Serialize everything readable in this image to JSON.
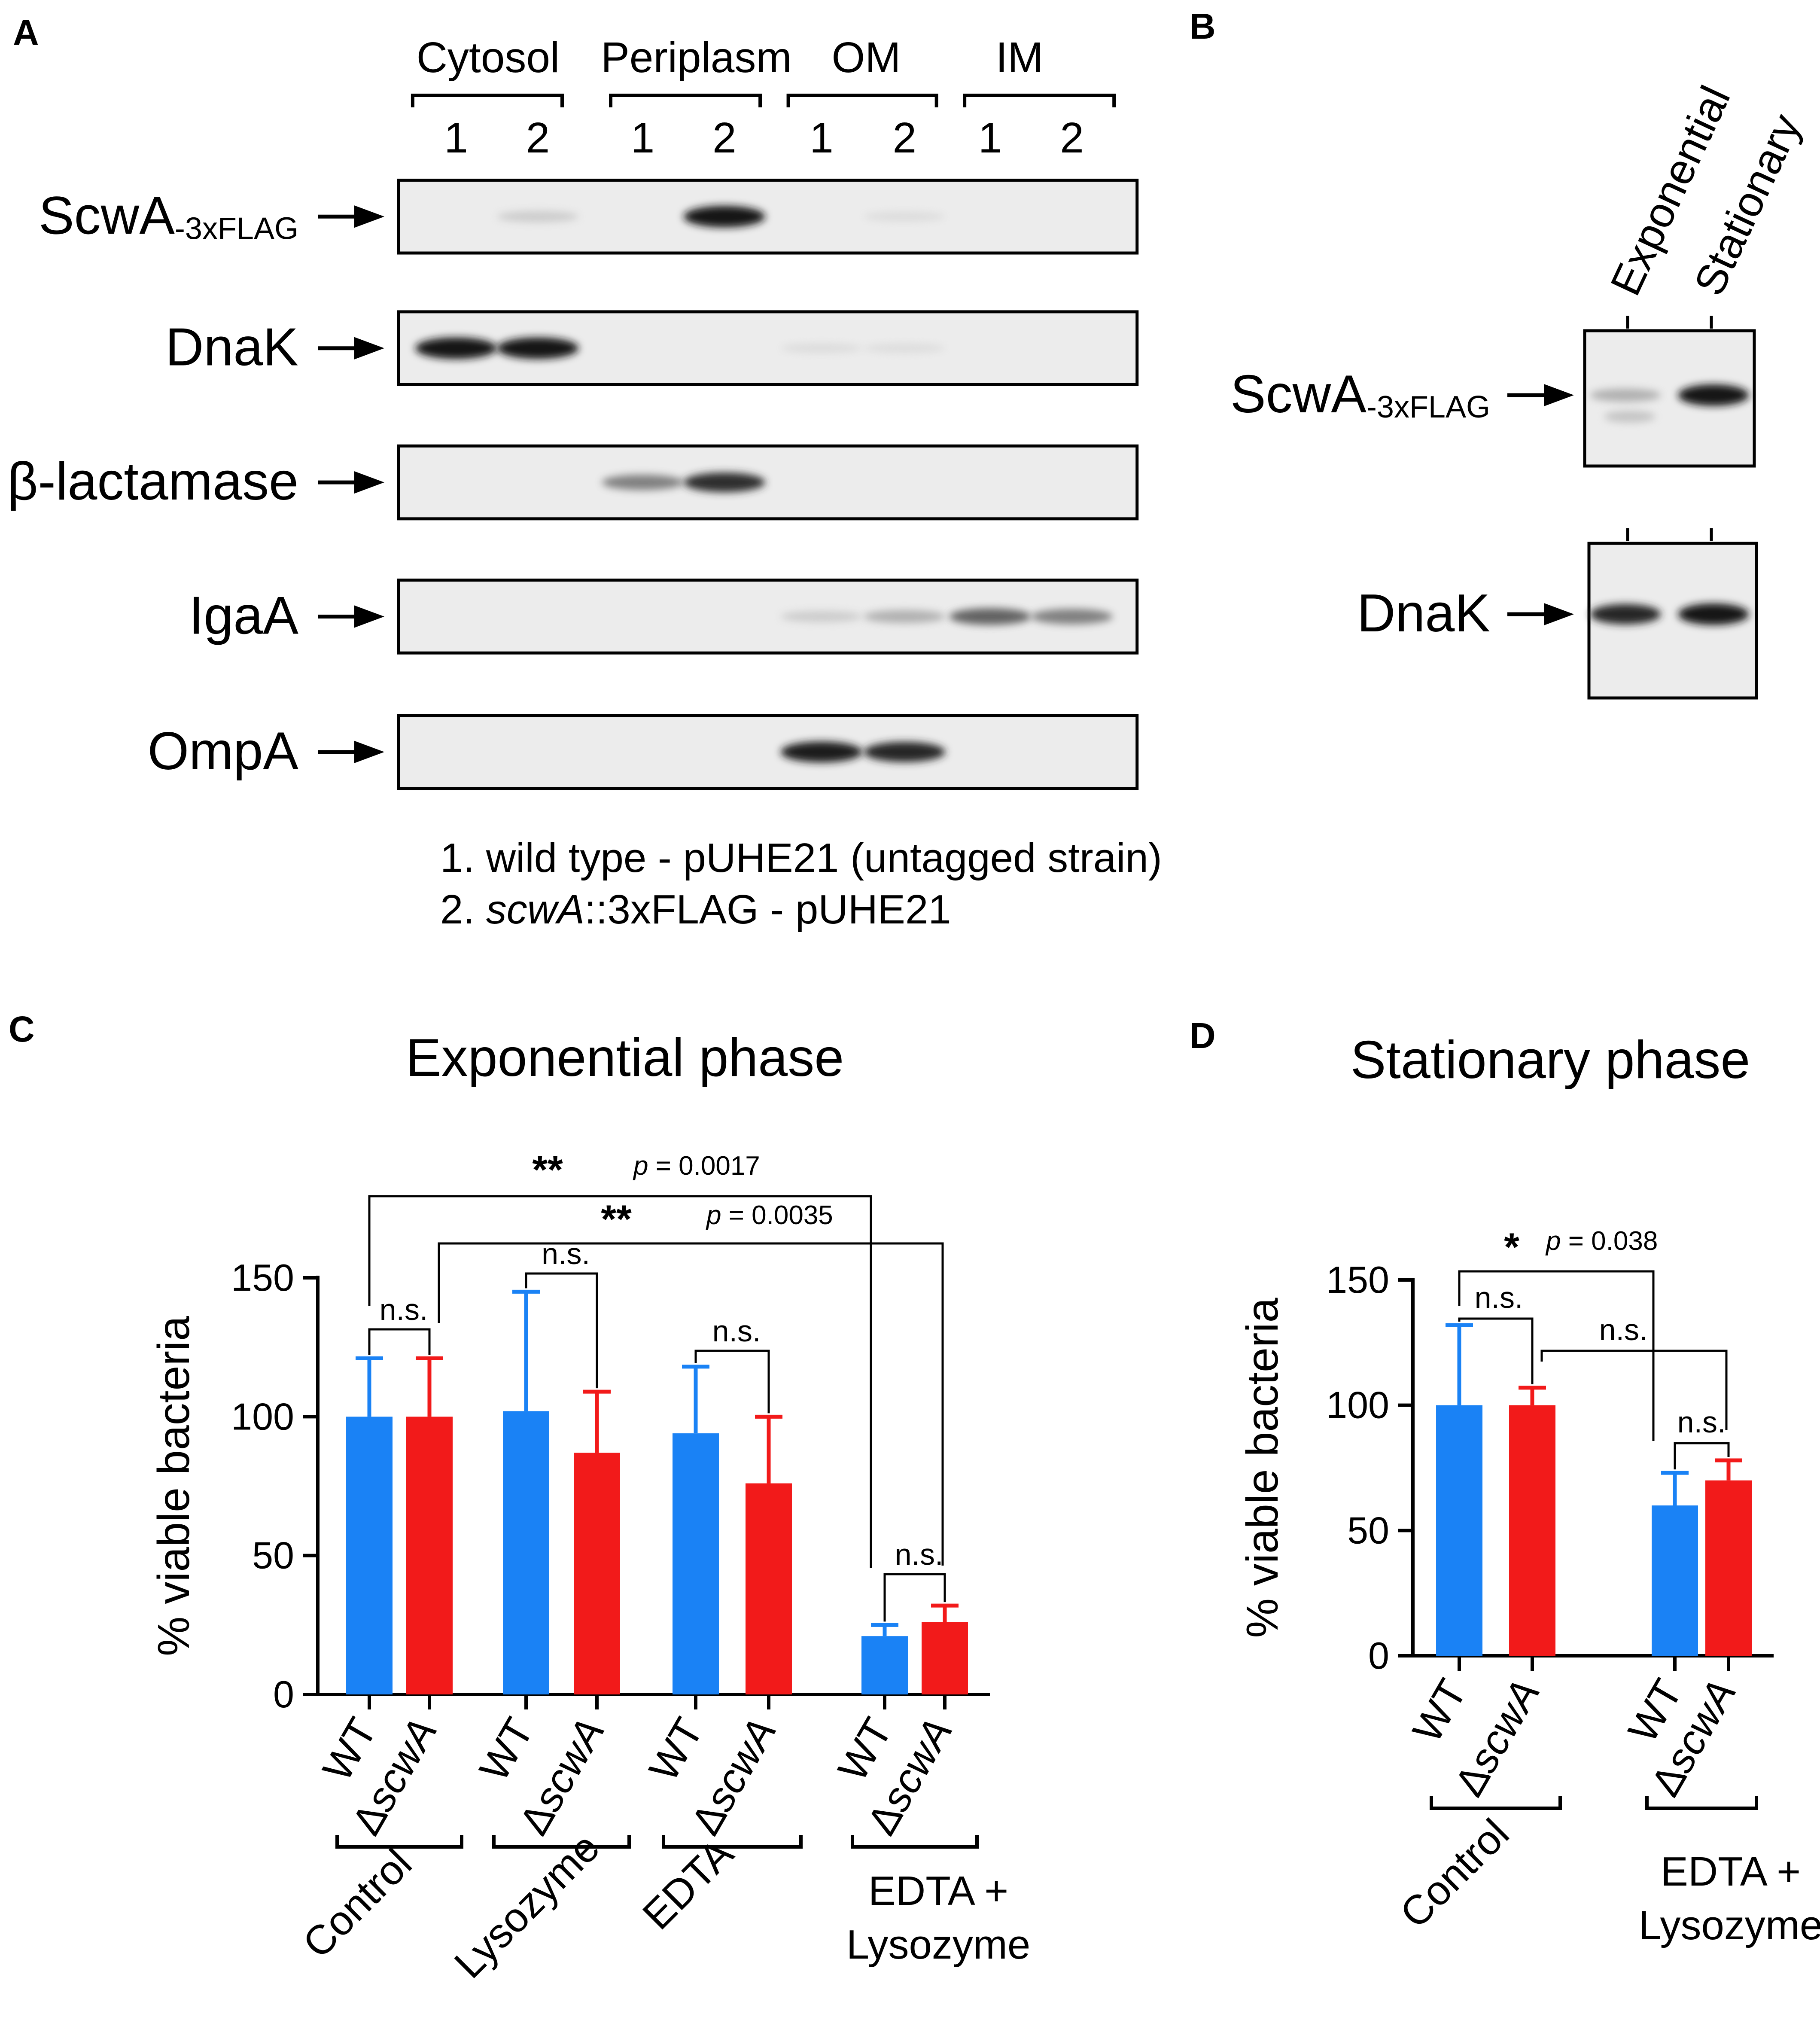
{
  "panels": {
    "A": {
      "label": "A",
      "fractions": [
        {
          "name": "Cytosol",
          "lanes": [
            "1",
            "2"
          ]
        },
        {
          "name": "Periplasm",
          "lanes": [
            "1",
            "2"
          ]
        },
        {
          "name": "OM",
          "lanes": [
            "1",
            "2"
          ]
        },
        {
          "name": "IM",
          "lanes": [
            "1",
            "2"
          ]
        }
      ],
      "blots": [
        {
          "label": "ScwA",
          "sub": "-3xFLAG",
          "bands": [
            0,
            0.15,
            0,
            1.0,
            0,
            0.03,
            0,
            0
          ]
        },
        {
          "label": "DnaK",
          "sub": "",
          "bands": [
            1.0,
            1.0,
            0,
            0,
            0.03,
            0.02,
            0,
            0
          ]
        },
        {
          "label": "β-lactamase",
          "sub": "",
          "bands": [
            0,
            0,
            0.5,
            0.85,
            0,
            0,
            0,
            0
          ]
        },
        {
          "label": "IgaA",
          "sub": "",
          "bands": [
            0,
            0,
            0,
            0,
            0.15,
            0.3,
            0.6,
            0.5
          ]
        },
        {
          "label": "OmpA",
          "sub": "",
          "bands": [
            0,
            0,
            0,
            0,
            0.95,
            0.9,
            0,
            0
          ]
        }
      ],
      "legend": {
        "line1": "1. wild type - pUHE21 (untagged strain)",
        "line2_prefix": "2. ",
        "line2_italic": "scwA",
        "line2_rest": "::3xFLAG - pUHE21"
      }
    },
    "B": {
      "label": "B",
      "lanes": [
        "Exponential",
        "Stationary"
      ],
      "blots": [
        {
          "label": "ScwA",
          "sub": "-3xFLAG",
          "bands": [
            0.3,
            1.0
          ]
        },
        {
          "label": "DnaK",
          "sub": "",
          "bands": [
            0.9,
            1.0
          ]
        }
      ]
    },
    "C": {
      "label": "C"
    },
    "D": {
      "label": "D"
    }
  },
  "chart_data": [
    {
      "type": "bar",
      "title": "Exponential phase",
      "ylabel": "% viable bacteria",
      "ylim": [
        0,
        150
      ],
      "yticks": [
        0,
        50,
        100,
        150
      ],
      "groups": [
        "Control",
        "Lysozyme",
        "EDTA",
        "EDTA + Lysozyme"
      ],
      "group_lines": [
        [
          "Control"
        ],
        [
          "Lysozyme"
        ],
        [
          "EDTA"
        ],
        [
          "EDTA +",
          "Lysozyme"
        ]
      ],
      "series": [
        {
          "name": "WT",
          "color": "#1a82f5",
          "values": [
            100,
            102,
            94,
            21
          ],
          "errors": [
            21,
            43,
            24,
            4
          ]
        },
        {
          "name": "ΔscwA",
          "color": "#f21a1a",
          "values": [
            100,
            87,
            76,
            26
          ],
          "errors": [
            21,
            22,
            24,
            6
          ]
        }
      ],
      "category_labels": {
        "wt": "WT",
        "delta": "Δ",
        "gene": "scwA"
      },
      "comparisons": [
        {
          "stars": "**",
          "p_italic": "p",
          "p_rest": " = 0.0017"
        },
        {
          "stars": "**",
          "p_italic": "p",
          "p_rest": " = 0.0035"
        },
        {
          "text": "n.s."
        },
        {
          "text": "n.s."
        },
        {
          "text": "n.s."
        },
        {
          "text": "n.s."
        }
      ]
    },
    {
      "type": "bar",
      "title": "Stationary phase",
      "ylabel": "% viable bacteria",
      "ylim": [
        0,
        150
      ],
      "yticks": [
        0,
        50,
        100,
        150
      ],
      "groups": [
        "Control",
        "EDTA + Lysozyme"
      ],
      "group_lines": [
        [
          "Control"
        ],
        [
          "EDTA +",
          "Lysozyme"
        ]
      ],
      "series": [
        {
          "name": "WT",
          "color": "#1a82f5",
          "values": [
            100,
            60
          ],
          "errors": [
            32,
            13
          ]
        },
        {
          "name": "ΔscwA",
          "color": "#f21a1a",
          "values": [
            100,
            70
          ],
          "errors": [
            7,
            8
          ]
        }
      ],
      "category_labels": {
        "wt": "WT",
        "delta": "Δ",
        "gene": "scwA"
      },
      "comparisons": [
        {
          "stars": "*",
          "p_italic": "p",
          "p_rest": " = 0.038"
        },
        {
          "text": "n.s."
        },
        {
          "text": "n.s."
        },
        {
          "text": "n.s."
        }
      ]
    }
  ]
}
